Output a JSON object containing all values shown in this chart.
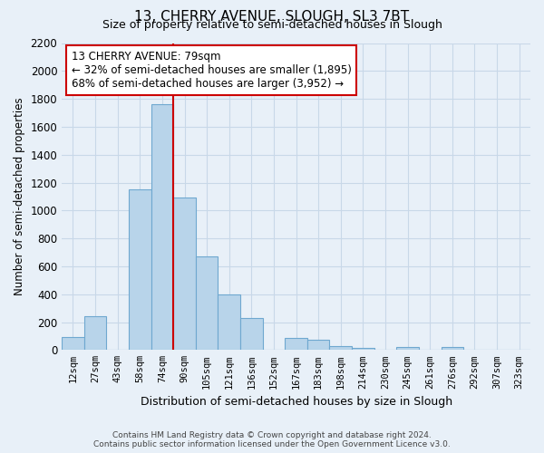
{
  "title": "13, CHERRY AVENUE, SLOUGH, SL3 7BT",
  "subtitle": "Size of property relative to semi-detached houses in Slough",
  "xlabel": "Distribution of semi-detached houses by size in Slough",
  "ylabel": "Number of semi-detached properties",
  "footer_line1": "Contains HM Land Registry data © Crown copyright and database right 2024.",
  "footer_line2": "Contains public sector information licensed under the Open Government Licence v3.0.",
  "bar_labels": [
    "12sqm",
    "27sqm",
    "43sqm",
    "58sqm",
    "74sqm",
    "90sqm",
    "105sqm",
    "121sqm",
    "136sqm",
    "152sqm",
    "167sqm",
    "183sqm",
    "198sqm",
    "214sqm",
    "230sqm",
    "245sqm",
    "261sqm",
    "276sqm",
    "292sqm",
    "307sqm",
    "323sqm"
  ],
  "bar_values": [
    90,
    240,
    0,
    1150,
    1760,
    1090,
    670,
    400,
    230,
    0,
    85,
    75,
    30,
    15,
    0,
    20,
    0,
    20,
    0,
    0,
    0
  ],
  "bar_color": "#b8d4ea",
  "bar_edge_color": "#6fa8d0",
  "marker_x_label": "74sqm",
  "marker_label": "13 CHERRY AVENUE: 79sqm",
  "annotation_line1": "← 32% of semi-detached houses are smaller (1,895)",
  "annotation_line2": "68% of semi-detached houses are larger (3,952) →",
  "marker_color": "#cc0000",
  "ylim": [
    0,
    2200
  ],
  "yticks": [
    0,
    200,
    400,
    600,
    800,
    1000,
    1200,
    1400,
    1600,
    1800,
    2000,
    2200
  ],
  "annotation_box_color": "#ffffff",
  "annotation_box_edge": "#cc0000",
  "grid_color": "#c8d8e8",
  "bg_color": "#e8f0f8",
  "title_fontsize": 11,
  "subtitle_fontsize": 9
}
